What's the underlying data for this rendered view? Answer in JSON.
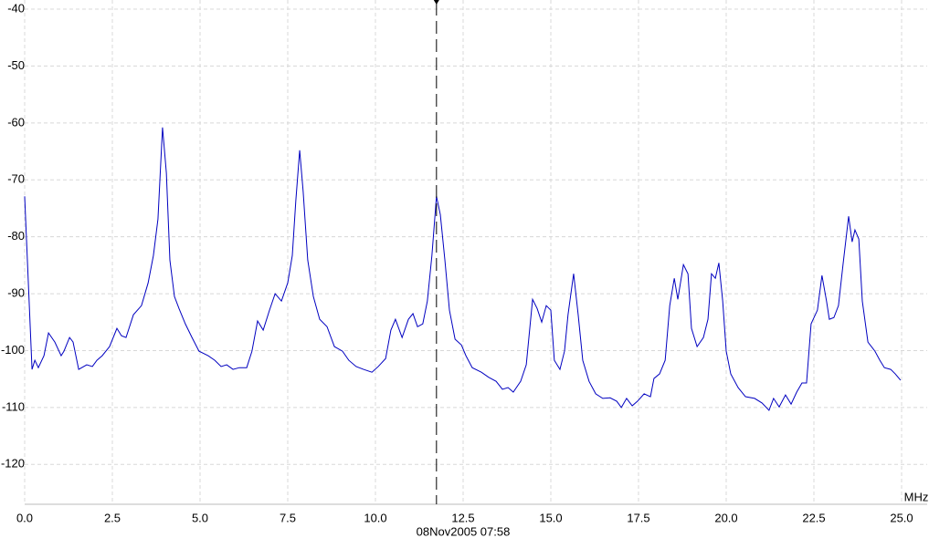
{
  "chart_data": {
    "type": "line",
    "x_unit": "MHz",
    "timestamp": "08Nov2005  07:58",
    "xlim": [
      0,
      25
    ],
    "ylim": [
      -127,
      -38.4
    ],
    "xticks": [
      {
        "value": 0,
        "label": "0.0"
      },
      2.5,
      {
        "value": 5,
        "label": "5.0"
      },
      7.5,
      {
        "value": 10,
        "label": "10.0"
      },
      12.5,
      {
        "value": 15,
        "label": "15.0"
      },
      17.5,
      {
        "value": 20,
        "label": "20.0"
      },
      22.5,
      {
        "value": 25,
        "label": "25.0"
      }
    ],
    "yticks": [
      -40,
      -50,
      -60,
      -70,
      -80,
      -90,
      -100,
      -110,
      -120
    ],
    "grid": true,
    "marker_x": 11.74,
    "series": [
      {
        "color": "#0000c0",
        "x": [
          0,
          0.21,
          0.29,
          0.39,
          0.55,
          0.68,
          0.86,
          1.04,
          1.12,
          1.28,
          1.38,
          1.54,
          1.77,
          1.93,
          2.06,
          2.21,
          2.42,
          2.63,
          2.76,
          2.89,
          3.1,
          3.33,
          3.52,
          3.67,
          3.8,
          3.93,
          4.04,
          4.14,
          4.27,
          4.4,
          4.58,
          4.77,
          4.97,
          5.23,
          5.42,
          5.6,
          5.76,
          5.94,
          6.12,
          6.33,
          6.48,
          6.64,
          6.8,
          6.98,
          7.14,
          7.32,
          7.5,
          7.63,
          7.73,
          7.84,
          7.94,
          8.07,
          8.23,
          8.41,
          8.62,
          8.83,
          9.06,
          9.24,
          9.45,
          9.66,
          9.9,
          10.08,
          10.29,
          10.44,
          10.57,
          10.76,
          10.94,
          11.07,
          11.2,
          11.35,
          11.48,
          11.61,
          11.74,
          11.85,
          11.98,
          12.11,
          12.27,
          12.45,
          12.58,
          12.76,
          13.02,
          13.23,
          13.44,
          13.62,
          13.78,
          13.93,
          14.14,
          14.3,
          14.48,
          14.61,
          14.74,
          14.87,
          15.0,
          15.1,
          15.26,
          15.39,
          15.49,
          15.65,
          15.78,
          15.91,
          16.09,
          16.28,
          16.48,
          16.69,
          16.88,
          17.01,
          17.16,
          17.32,
          17.47,
          17.66,
          17.84,
          17.94,
          18.1,
          18.26,
          18.39,
          18.52,
          18.62,
          18.78,
          18.91,
          19.01,
          19.17,
          19.35,
          19.48,
          19.58,
          19.69,
          19.79,
          19.9,
          20.0,
          20.13,
          20.34,
          20.55,
          20.81,
          21.02,
          21.22,
          21.35,
          21.51,
          21.69,
          21.85,
          22.01,
          22.16,
          22.29,
          22.42,
          22.6,
          22.73,
          22.86,
          22.94,
          23.07,
          23.2,
          23.33,
          23.49,
          23.59,
          23.67,
          23.78,
          23.88,
          24.04,
          24.24,
          24.38,
          24.51,
          24.69,
          24.82,
          24.97
        ],
        "values": [
          -72.9,
          -103.3,
          -101.7,
          -103.0,
          -100.9,
          -96.9,
          -98.5,
          -100.9,
          -100.1,
          -97.7,
          -98.5,
          -103.3,
          -102.5,
          -102.8,
          -101.7,
          -100.9,
          -99.3,
          -96.1,
          -97.4,
          -97.7,
          -93.7,
          -92.1,
          -88.1,
          -83.3,
          -76.9,
          -60.8,
          -68.8,
          -84.1,
          -90.5,
          -92.6,
          -95.3,
          -97.7,
          -100.1,
          -100.9,
          -101.7,
          -102.8,
          -102.5,
          -103.3,
          -103.0,
          -103.0,
          -100.1,
          -94.8,
          -96.4,
          -92.9,
          -90.0,
          -91.3,
          -88.1,
          -83.3,
          -73.7,
          -64.8,
          -72.1,
          -84.1,
          -90.5,
          -94.5,
          -95.8,
          -99.3,
          -100.1,
          -101.7,
          -102.8,
          -103.3,
          -103.8,
          -102.8,
          -101.4,
          -96.4,
          -94.5,
          -97.7,
          -94.5,
          -93.5,
          -95.8,
          -95.3,
          -91.3,
          -83.3,
          -72.9,
          -76.1,
          -84.1,
          -92.9,
          -98.0,
          -99.0,
          -100.9,
          -103.0,
          -103.8,
          -104.7,
          -105.4,
          -106.8,
          -106.5,
          -107.3,
          -105.4,
          -102.5,
          -91.0,
          -92.6,
          -95.0,
          -92.1,
          -92.9,
          -101.7,
          -103.3,
          -100.1,
          -93.7,
          -86.5,
          -93.7,
          -101.7,
          -105.4,
          -107.6,
          -108.4,
          -108.3,
          -108.9,
          -110.0,
          -108.4,
          -109.7,
          -108.9,
          -107.6,
          -108.1,
          -104.9,
          -104.1,
          -101.7,
          -92.1,
          -87.3,
          -91.0,
          -84.9,
          -86.5,
          -96.1,
          -99.3,
          -97.7,
          -94.5,
          -86.5,
          -87.3,
          -84.6,
          -91.3,
          -100.1,
          -104.1,
          -106.5,
          -108.1,
          -108.4,
          -109.2,
          -110.5,
          -108.4,
          -109.9,
          -107.8,
          -109.4,
          -107.3,
          -105.7,
          -105.7,
          -95.3,
          -92.9,
          -86.8,
          -91.3,
          -94.5,
          -94.2,
          -92.1,
          -84.9,
          -76.4,
          -80.9,
          -78.8,
          -80.4,
          -91.3,
          -98.5,
          -100.1,
          -101.7,
          -103.0,
          -103.3,
          -104.1,
          -105.2
        ]
      }
    ]
  }
}
